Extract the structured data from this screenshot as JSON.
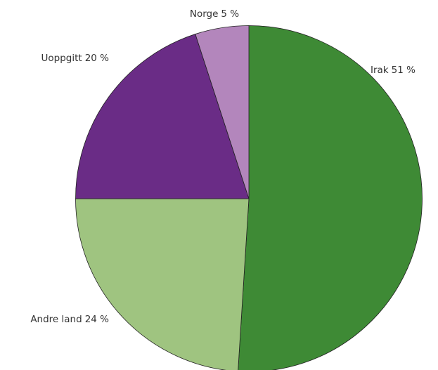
{
  "chart_data": {
    "type": "pie",
    "categories": [
      "Irak",
      "Andre land",
      "Uoppgitt",
      "Norge"
    ],
    "values": [
      51,
      24,
      20,
      5
    ],
    "value_labels": [
      "51 %",
      "24 %",
      "20 %",
      "5 %"
    ],
    "colors": [
      "#3e8a35",
      "#9fc480",
      "#6a2c86",
      "#b386bc"
    ]
  }
}
